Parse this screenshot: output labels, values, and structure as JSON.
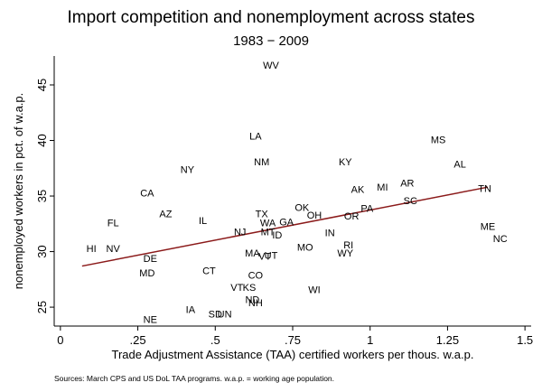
{
  "chart_data": {
    "type": "scatter",
    "title": "Import competition and nonemployment across states",
    "subtitle": "1983 − 2009",
    "xlabel": "Trade Adjustment Assistance (TAA) certified workers per thous. w.a.p.",
    "ylabel": "nonemployed workers in pct. of w.a.p.",
    "xlim": [
      -0.02,
      1.52
    ],
    "ylim": [
      23.3,
      47.6
    ],
    "xticks": [
      0,
      0.25,
      0.5,
      0.75,
      1,
      1.25,
      1.5
    ],
    "xtick_labels": [
      "0",
      ".25",
      ".5",
      ".75",
      "1",
      "1.25",
      "1.5"
    ],
    "yticks": [
      25,
      30,
      35,
      40,
      45
    ],
    "ytick_labels": [
      "25",
      "30",
      "35",
      "40",
      "45"
    ],
    "grid": false,
    "point_style": "state labels",
    "points": [
      {
        "label": "WV",
        "x": 0.68,
        "y": 46.8
      },
      {
        "label": "LA",
        "x": 0.63,
        "y": 40.4
      },
      {
        "label": "MS",
        "x": 1.22,
        "y": 40.1
      },
      {
        "label": "NM",
        "x": 0.65,
        "y": 38.1
      },
      {
        "label": "KY",
        "x": 0.92,
        "y": 38.1
      },
      {
        "label": "AL",
        "x": 1.29,
        "y": 37.9
      },
      {
        "label": "NY",
        "x": 0.41,
        "y": 37.4
      },
      {
        "label": "AR",
        "x": 1.12,
        "y": 36.2
      },
      {
        "label": "MI",
        "x": 1.04,
        "y": 35.8
      },
      {
        "label": "AK",
        "x": 0.96,
        "y": 35.6
      },
      {
        "label": "TN",
        "x": 1.37,
        "y": 35.7
      },
      {
        "label": "CA",
        "x": 0.28,
        "y": 35.3
      },
      {
        "label": "SC",
        "x": 1.13,
        "y": 34.6
      },
      {
        "label": "OK",
        "x": 0.78,
        "y": 34.0
      },
      {
        "label": "PA",
        "x": 0.99,
        "y": 33.9
      },
      {
        "label": "AZ",
        "x": 0.34,
        "y": 33.4
      },
      {
        "label": "TX",
        "x": 0.65,
        "y": 33.4
      },
      {
        "label": "OH",
        "x": 0.82,
        "y": 33.3
      },
      {
        "label": "OR",
        "x": 0.94,
        "y": 33.2
      },
      {
        "label": "IL",
        "x": 0.46,
        "y": 32.8
      },
      {
        "label": "FL",
        "x": 0.17,
        "y": 32.6
      },
      {
        "label": "WA",
        "x": 0.67,
        "y": 32.6
      },
      {
        "label": "GA",
        "x": 0.73,
        "y": 32.7
      },
      {
        "label": "ME",
        "x": 1.38,
        "y": 32.3
      },
      {
        "label": "NJ",
        "x": 0.58,
        "y": 31.8
      },
      {
        "label": "MT",
        "x": 0.67,
        "y": 31.8
      },
      {
        "label": "IN",
        "x": 0.87,
        "y": 31.7
      },
      {
        "label": "ID",
        "x": 0.7,
        "y": 31.5
      },
      {
        "label": "NC",
        "x": 1.42,
        "y": 31.2
      },
      {
        "label": "HI",
        "x": 0.1,
        "y": 30.3
      },
      {
        "label": "NV",
        "x": 0.17,
        "y": 30.3
      },
      {
        "label": "MO",
        "x": 0.79,
        "y": 30.4
      },
      {
        "label": "RI",
        "x": 0.93,
        "y": 30.6
      },
      {
        "label": "MA",
        "x": 0.62,
        "y": 29.9
      },
      {
        "label": "UT",
        "x": 0.68,
        "y": 29.7
      },
      {
        "label": "VT",
        "x": 0.66,
        "y": 29.6
      },
      {
        "label": "WY",
        "x": 0.92,
        "y": 29.9
      },
      {
        "label": "DE",
        "x": 0.29,
        "y": 29.4
      },
      {
        "label": "MD",
        "x": 0.28,
        "y": 28.1
      },
      {
        "label": "CT",
        "x": 0.48,
        "y": 28.3
      },
      {
        "label": "CO",
        "x": 0.63,
        "y": 27.9
      },
      {
        "label": "VT",
        "x": 0.57,
        "y": 26.8
      },
      {
        "label": "KS",
        "x": 0.61,
        "y": 26.8
      },
      {
        "label": "WI",
        "x": 0.82,
        "y": 26.6
      },
      {
        "label": "ND",
        "x": 0.62,
        "y": 25.7
      },
      {
        "label": "NH",
        "x": 0.63,
        "y": 25.4
      },
      {
        "label": "IA",
        "x": 0.42,
        "y": 24.8
      },
      {
        "label": "SD",
        "x": 0.5,
        "y": 24.4
      },
      {
        "label": "UN",
        "x": 0.53,
        "y": 24.4
      },
      {
        "label": "NE",
        "x": 0.29,
        "y": 23.9
      }
    ],
    "fit_line": {
      "x": [
        0.07,
        1.38
      ],
      "y": [
        28.7,
        35.8
      ],
      "color": "#8b1a1a"
    }
  },
  "footnote": "Sources: March CPS and US DoL TAA programs. w.a.p. = working age population."
}
